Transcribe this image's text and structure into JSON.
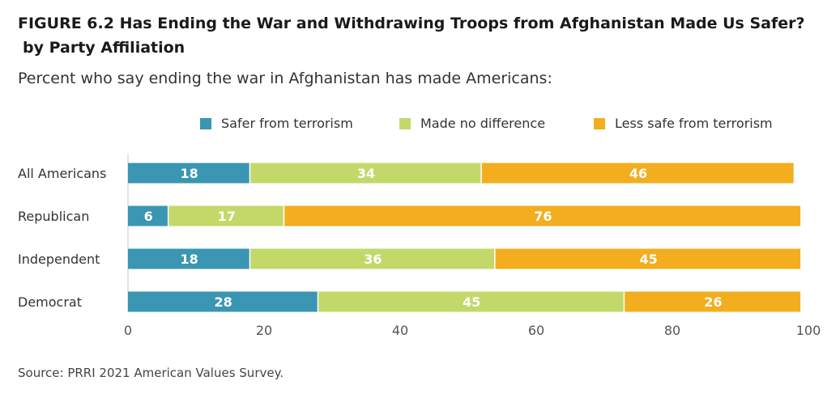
{
  "title_line1": "FIGURE 6.2 Has Ending the War and Withdrawing Troops from Afghanistan Made Us Safer?",
  "title_line2": "by Party Affiliation",
  "subtitle": "Percent who say ending the war in Afghanistan has made Americans:",
  "source": "Source: PRRI 2021 American Values Survey.",
  "chart_data": {
    "type": "bar",
    "orientation": "horizontal",
    "stacked": true,
    "categories": [
      "All Americans",
      "Republican",
      "Independent",
      "Democrat"
    ],
    "series": [
      {
        "name": "Safer from terrorism",
        "color": "#3a96b2",
        "values": [
          18,
          6,
          18,
          28
        ]
      },
      {
        "name": "Made no difference",
        "color": "#c2d96a",
        "values": [
          34,
          17,
          36,
          45
        ]
      },
      {
        "name": "Less safe from terrorism",
        "color": "#f2ae1f",
        "values": [
          46,
          76,
          45,
          26
        ]
      }
    ],
    "xlim": [
      0,
      100
    ],
    "xticks": [
      0,
      20,
      40,
      60,
      80,
      100
    ],
    "grid": false,
    "legend_position": "top"
  }
}
